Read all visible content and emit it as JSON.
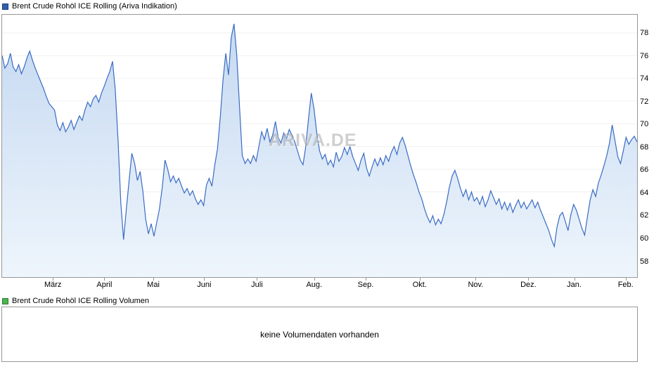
{
  "price_panel": {
    "legend_label": "Brent Crude Rohöl ICE Rolling (Ariva Indikation)",
    "legend_color": "#2f5fae",
    "legend_border": "#1d3f7d"
  },
  "volume_panel": {
    "legend_label": "Brent Crude Rohöl ICE Rolling Volumen",
    "legend_color": "#4db34d",
    "legend_border": "#2e7d32",
    "empty_message": "keine Volumendaten vorhanden"
  },
  "watermark": "ARIVA.DE",
  "chart_data": {
    "type": "area",
    "title": "Brent Crude Rohöl ICE Rolling (Ariva Indikation)",
    "xlabel": "",
    "ylabel": "",
    "ylim": [
      56.5,
      79.6
    ],
    "y_ticks": [
      58,
      60,
      62,
      64,
      66,
      68,
      70,
      72,
      74,
      76,
      78
    ],
    "x_ticks": [
      {
        "label": "März",
        "pos": 0.081
      },
      {
        "label": "April",
        "pos": 0.162
      },
      {
        "label": "Mai",
        "pos": 0.239
      },
      {
        "label": "Juni",
        "pos": 0.319
      },
      {
        "label": "Juli",
        "pos": 0.402
      },
      {
        "label": "Aug.",
        "pos": 0.492
      },
      {
        "label": "Sep.",
        "pos": 0.573
      },
      {
        "label": "Okt.",
        "pos": 0.658
      },
      {
        "label": "Nov.",
        "pos": 0.746
      },
      {
        "label": "Dez.",
        "pos": 0.829
      },
      {
        "label": "Jan.",
        "pos": 0.901
      },
      {
        "label": "Feb.",
        "pos": 0.982
      }
    ],
    "grid_on": true,
    "grid_color": "#f0f0f0",
    "line_color": "#3a6bc4",
    "fill_top": "#c5d9f1",
    "fill_bottom": "#eef5fc",
    "values": [
      76.0,
      74.9,
      75.3,
      76.2,
      75.0,
      74.6,
      75.2,
      74.4,
      75.0,
      75.8,
      76.4,
      75.6,
      74.9,
      74.3,
      73.7,
      73.1,
      72.4,
      71.8,
      71.5,
      71.2,
      69.9,
      69.4,
      70.1,
      69.3,
      69.7,
      70.3,
      69.5,
      70.1,
      70.7,
      70.3,
      71.2,
      71.9,
      71.5,
      72.2,
      72.5,
      71.9,
      72.7,
      73.3,
      74.0,
      74.6,
      75.5,
      73.0,
      68.5,
      63.0,
      59.8,
      62.5,
      65.0,
      67.4,
      66.5,
      65.0,
      65.8,
      64.0,
      61.6,
      60.3,
      61.2,
      60.1,
      61.3,
      62.5,
      64.4,
      66.8,
      66.0,
      64.9,
      65.4,
      64.8,
      65.2,
      64.5,
      63.9,
      64.3,
      63.7,
      64.1,
      63.4,
      62.9,
      63.3,
      62.8,
      64.6,
      65.2,
      64.5,
      66.3,
      67.8,
      70.5,
      73.8,
      76.2,
      74.3,
      77.6,
      78.8,
      76.0,
      71.5,
      67.2,
      66.5,
      66.9,
      66.5,
      67.2,
      66.7,
      68.0,
      69.3,
      68.6,
      69.6,
      68.4,
      69.0,
      70.2,
      68.8,
      68.3,
      69.2,
      68.7,
      69.5,
      69.0,
      68.4,
      67.6,
      66.8,
      66.4,
      68.0,
      70.5,
      72.7,
      71.3,
      69.1,
      67.6,
      66.9,
      67.3,
      66.4,
      66.8,
      66.2,
      67.5,
      66.7,
      67.1,
      67.9,
      67.3,
      68.0,
      67.1,
      66.5,
      65.9,
      66.8,
      67.4,
      66.1,
      65.4,
      66.2,
      66.9,
      66.3,
      67.0,
      66.4,
      67.2,
      66.7,
      67.5,
      68.0,
      67.3,
      68.3,
      68.8,
      68.1,
      67.2,
      66.3,
      65.5,
      64.8,
      64.0,
      63.4,
      62.5,
      61.8,
      61.3,
      61.9,
      61.1,
      61.6,
      61.2,
      62.0,
      63.1,
      64.4,
      65.4,
      65.9,
      65.2,
      64.3,
      63.6,
      64.2,
      63.3,
      64.0,
      63.2,
      63.5,
      62.9,
      63.6,
      62.7,
      63.3,
      64.1,
      63.5,
      62.9,
      63.4,
      62.5,
      63.1,
      62.4,
      63.0,
      62.2,
      62.8,
      63.3,
      62.6,
      63.1,
      62.5,
      62.9,
      63.3,
      62.6,
      63.1,
      62.4,
      61.8,
      61.2,
      60.6,
      59.8,
      59.2,
      60.9,
      61.9,
      62.2,
      61.4,
      60.6,
      62.0,
      62.9,
      62.4,
      61.6,
      60.8,
      60.2,
      61.8,
      63.3,
      64.2,
      63.6,
      64.8,
      65.5,
      66.3,
      67.2,
      68.3,
      69.9,
      68.5,
      67.1,
      66.5,
      67.6,
      68.8,
      68.2,
      68.6,
      68.9,
      68.4
    ]
  }
}
